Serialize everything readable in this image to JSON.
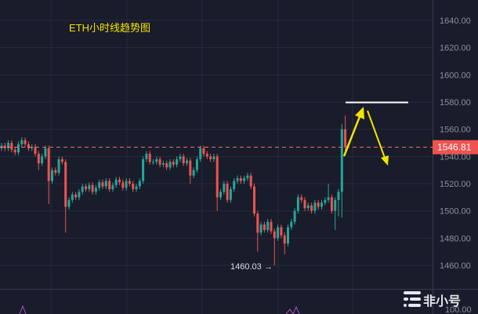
{
  "chart_data": {
    "type": "candlestick",
    "title": "ETH小时线趋势图",
    "ylim": [
      1440,
      1652
    ],
    "y_ticks": [
      "1640.00",
      "1620.00",
      "1600.00",
      "1580.00",
      "1560.00",
      "1540.00",
      "1520.00",
      "1500.00",
      "1480.00",
      "1460.00"
    ],
    "indicator_tick": "100.00",
    "last_price": "1546.81",
    "last_price_value": 1546.81,
    "low_label": "1460.03 →",
    "resistance_level": 1580,
    "grid": true,
    "colors": {
      "up": "#26a69a",
      "down": "#ef5350",
      "background": "#191c2b",
      "annotation": "#f5e400",
      "price_tag": "#ef5350"
    },
    "ohlc": [
      [
        1546,
        1550,
        1544,
        1548
      ],
      [
        1548,
        1550,
        1544,
        1546
      ],
      [
        1546,
        1552,
        1544,
        1550
      ],
      [
        1550,
        1552,
        1543,
        1545
      ],
      [
        1545,
        1547,
        1541,
        1543
      ],
      [
        1543,
        1551,
        1541,
        1549
      ],
      [
        1549,
        1554,
        1547,
        1552
      ],
      [
        1552,
        1554,
        1547,
        1549
      ],
      [
        1549,
        1551,
        1544,
        1546
      ],
      [
        1546,
        1549,
        1544,
        1547
      ],
      [
        1547,
        1549,
        1540,
        1542
      ],
      [
        1542,
        1544,
        1530,
        1535
      ],
      [
        1535,
        1542,
        1533,
        1540
      ],
      [
        1540,
        1548,
        1538,
        1546
      ],
      [
        1546,
        1548,
        1505,
        1522
      ],
      [
        1522,
        1532,
        1520,
        1530
      ],
      [
        1530,
        1532,
        1526,
        1528
      ],
      [
        1528,
        1540,
        1526,
        1538
      ],
      [
        1538,
        1540,
        1534,
        1536
      ],
      [
        1536,
        1538,
        1484,
        1503
      ],
      [
        1503,
        1510,
        1501,
        1508
      ],
      [
        1508,
        1514,
        1506,
        1512
      ],
      [
        1512,
        1514,
        1508,
        1510
      ],
      [
        1510,
        1516,
        1508,
        1514
      ],
      [
        1514,
        1520,
        1512,
        1518
      ],
      [
        1518,
        1520,
        1514,
        1516
      ],
      [
        1516,
        1521,
        1514,
        1519
      ],
      [
        1519,
        1521,
        1512,
        1514
      ],
      [
        1514,
        1519,
        1512,
        1517
      ],
      [
        1517,
        1523,
        1515,
        1521
      ],
      [
        1521,
        1523,
        1516,
        1518
      ],
      [
        1518,
        1524,
        1516,
        1522
      ],
      [
        1522,
        1524,
        1514,
        1516
      ],
      [
        1516,
        1521,
        1514,
        1519
      ],
      [
        1519,
        1525,
        1517,
        1523
      ],
      [
        1523,
        1525,
        1519,
        1521
      ],
      [
        1521,
        1523,
        1515,
        1517
      ],
      [
        1517,
        1524,
        1515,
        1522
      ],
      [
        1522,
        1524,
        1518,
        1520
      ],
      [
        1520,
        1522,
        1514,
        1516
      ],
      [
        1516,
        1520,
        1514,
        1518
      ],
      [
        1518,
        1524,
        1516,
        1522
      ],
      [
        1522,
        1540,
        1520,
        1538
      ],
      [
        1538,
        1544,
        1536,
        1542
      ],
      [
        1542,
        1544,
        1534,
        1536
      ],
      [
        1536,
        1538,
        1534,
        1536
      ],
      [
        1536,
        1540,
        1534,
        1538
      ],
      [
        1538,
        1540,
        1532,
        1534
      ],
      [
        1534,
        1537,
        1532,
        1535
      ],
      [
        1535,
        1537,
        1530,
        1532
      ],
      [
        1532,
        1538,
        1530,
        1536
      ],
      [
        1536,
        1538,
        1532,
        1534
      ],
      [
        1534,
        1540,
        1532,
        1538
      ],
      [
        1538,
        1542,
        1536,
        1540
      ],
      [
        1540,
        1542,
        1533,
        1535
      ],
      [
        1535,
        1539,
        1533,
        1537
      ],
      [
        1537,
        1539,
        1520,
        1526
      ],
      [
        1526,
        1532,
        1524,
        1530
      ],
      [
        1530,
        1540,
        1528,
        1538
      ],
      [
        1538,
        1548,
        1536,
        1546
      ],
      [
        1546,
        1548,
        1540,
        1542
      ],
      [
        1542,
        1544,
        1538,
        1540
      ],
      [
        1540,
        1542,
        1536,
        1538
      ],
      [
        1538,
        1542,
        1536,
        1540
      ],
      [
        1540,
        1542,
        1500,
        1510
      ],
      [
        1510,
        1516,
        1508,
        1514
      ],
      [
        1514,
        1522,
        1512,
        1520
      ],
      [
        1520,
        1522,
        1506,
        1508
      ],
      [
        1508,
        1518,
        1506,
        1516
      ],
      [
        1516,
        1524,
        1514,
        1522
      ],
      [
        1522,
        1526,
        1520,
        1524
      ],
      [
        1524,
        1526,
        1520,
        1522
      ],
      [
        1522,
        1526,
        1520,
        1524
      ],
      [
        1524,
        1528,
        1522,
        1526
      ],
      [
        1526,
        1528,
        1516,
        1518
      ],
      [
        1518,
        1520,
        1496,
        1498
      ],
      [
        1498,
        1500,
        1470,
        1484
      ],
      [
        1484,
        1492,
        1482,
        1490
      ],
      [
        1490,
        1492,
        1484,
        1486
      ],
      [
        1486,
        1494,
        1484,
        1492
      ],
      [
        1492,
        1494,
        1483,
        1485
      ],
      [
        1485,
        1487,
        1460.03,
        1480
      ],
      [
        1480,
        1490,
        1478,
        1488
      ],
      [
        1488,
        1490,
        1480,
        1482
      ],
      [
        1482,
        1484,
        1468,
        1476
      ],
      [
        1476,
        1490,
        1474,
        1488
      ],
      [
        1488,
        1494,
        1486,
        1492
      ],
      [
        1492,
        1502,
        1490,
        1500
      ],
      [
        1500,
        1512,
        1498,
        1510
      ],
      [
        1510,
        1512,
        1506,
        1508
      ],
      [
        1508,
        1510,
        1500,
        1502
      ],
      [
        1502,
        1506,
        1500,
        1504
      ],
      [
        1504,
        1506,
        1498,
        1500
      ],
      [
        1500,
        1508,
        1498,
        1506
      ],
      [
        1506,
        1508,
        1501,
        1503
      ],
      [
        1503,
        1508,
        1501,
        1506
      ],
      [
        1506,
        1510,
        1504,
        1508
      ],
      [
        1508,
        1520,
        1506,
        1510
      ],
      [
        1510,
        1512,
        1498,
        1500
      ],
      [
        1500,
        1510,
        1486,
        1508
      ],
      [
        1508,
        1516,
        1496,
        1514
      ],
      [
        1514,
        1564,
        1495,
        1560
      ],
      [
        1560,
        1570,
        1544,
        1546.81
      ]
    ]
  },
  "watermark": "非小号"
}
